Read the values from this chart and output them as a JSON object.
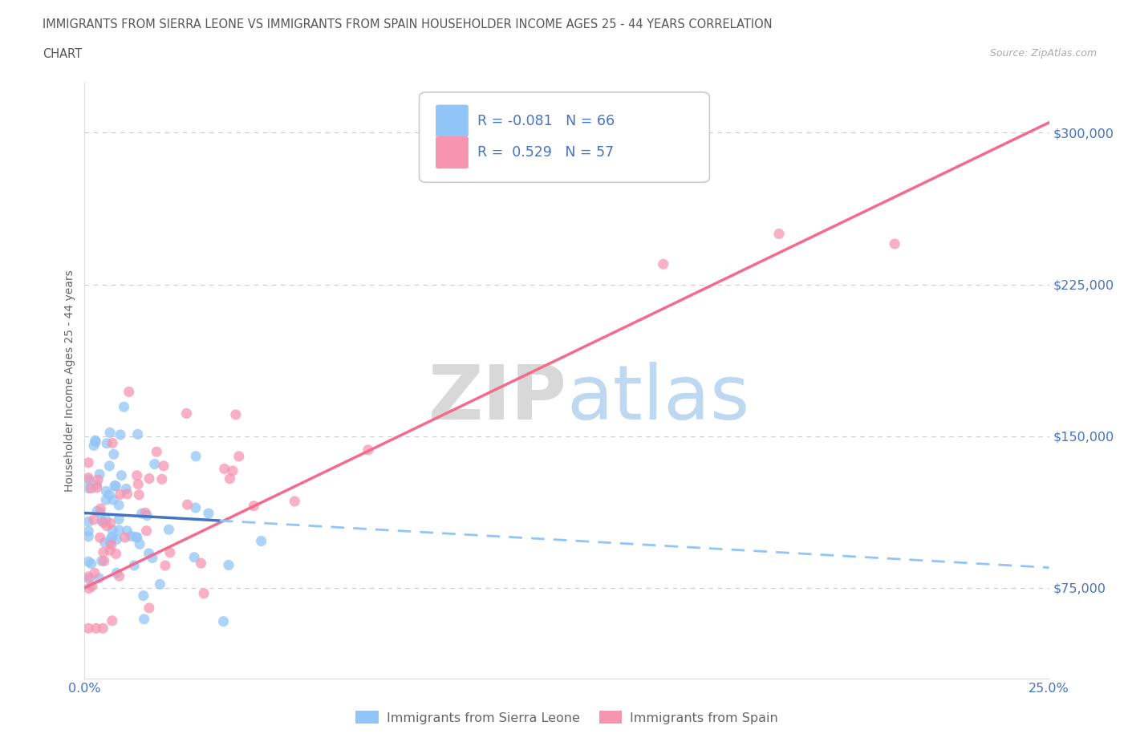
{
  "title_line1": "IMMIGRANTS FROM SIERRA LEONE VS IMMIGRANTS FROM SPAIN HOUSEHOLDER INCOME AGES 25 - 44 YEARS CORRELATION",
  "title_line2": "CHART",
  "source": "Source: ZipAtlas.com",
  "ylabel": "Householder Income Ages 25 - 44 years",
  "xlim": [
    0.0,
    0.25
  ],
  "ylim": [
    30000,
    325000
  ],
  "yticks": [
    75000,
    150000,
    225000,
    300000
  ],
  "ytick_labels": [
    "$75,000",
    "$150,000",
    "$225,000",
    "$300,000"
  ],
  "xtick_positions": [
    0.0,
    0.05,
    0.1,
    0.15,
    0.2,
    0.25
  ],
  "xtick_labels": [
    "0.0%",
    "",
    "",
    "",
    "",
    "25.0%"
  ],
  "legend_label1": "Immigrants from Sierra Leone",
  "legend_label2": "Immigrants from Spain",
  "R1": -0.081,
  "N1": 66,
  "R2": 0.529,
  "N2": 57,
  "color1": "#92c5f7",
  "color2": "#f794b0",
  "trendline1_solid_color": "#4472c4",
  "trendline1_dash_color": "#92c5f7",
  "trendline2_color": "#f46b8e",
  "background_color": "#ffffff",
  "title_color": "#555555",
  "axis_label_color": "#666666",
  "tick_color": "#4472c4",
  "grid_color": "#cccccc",
  "trendline1_y0": 112000,
  "trendline1_y1": 85000,
  "trendline2_y0": 75000,
  "trendline2_y1": 305000
}
